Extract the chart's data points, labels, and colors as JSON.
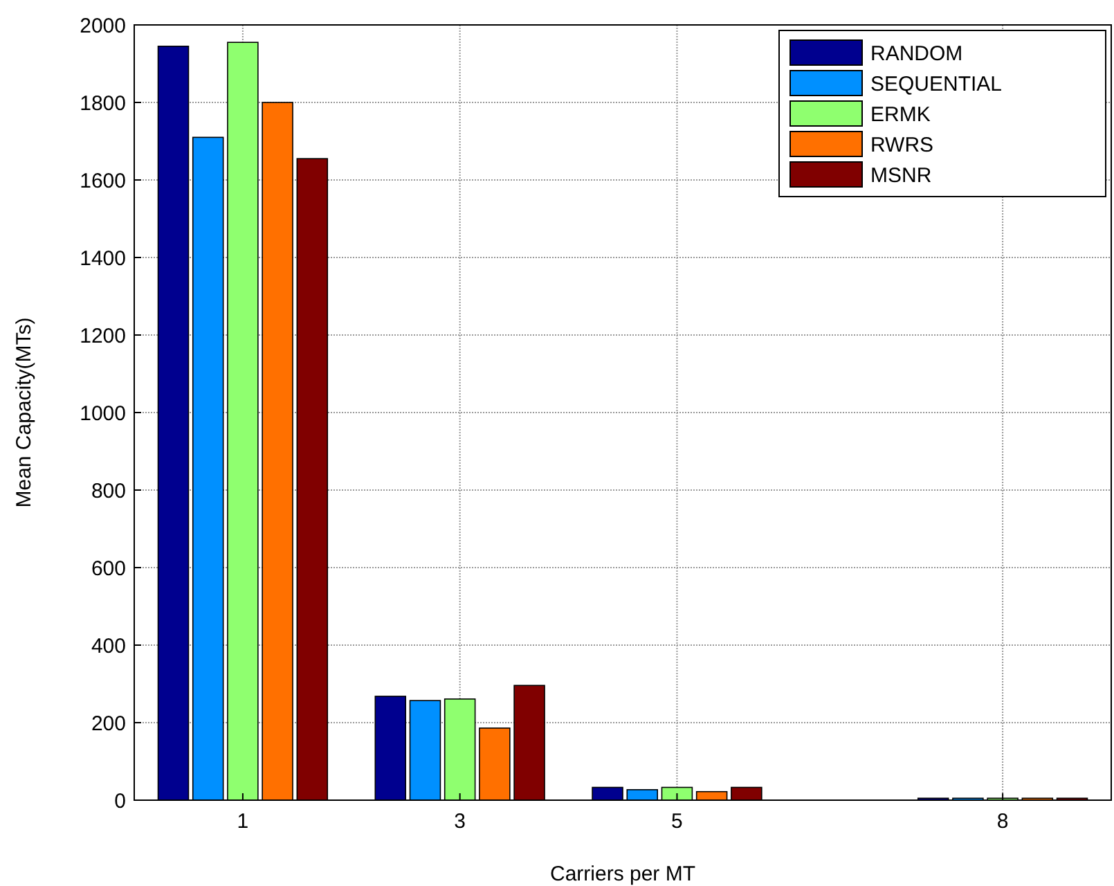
{
  "chart_data": {
    "type": "bar",
    "xlabel": "Carriers per MT",
    "ylabel": "Mean Capacity(MTs)",
    "x": [
      1,
      3,
      5,
      8
    ],
    "xlim": [
      0,
      9
    ],
    "xticks": [
      1,
      3,
      5,
      8
    ],
    "ylim": [
      0,
      2000
    ],
    "yticks": [
      0,
      200,
      400,
      600,
      800,
      1000,
      1200,
      1400,
      1600,
      1800,
      2000
    ],
    "grid": true,
    "legend": "top right",
    "series": [
      {
        "name": "RANDOM",
        "color": "#00008f",
        "values": [
          1945,
          268,
          33,
          5
        ]
      },
      {
        "name": "SEQUENTIAL",
        "color": "#0090ff",
        "values": [
          1710,
          257,
          27,
          5
        ]
      },
      {
        "name": "ERMK",
        "color": "#8fff6f",
        "values": [
          1955,
          261,
          33,
          5
        ]
      },
      {
        "name": "RWRS",
        "color": "#ff7000",
        "values": [
          1800,
          186,
          22,
          5
        ]
      },
      {
        "name": "MSNR",
        "color": "#800000",
        "values": [
          1655,
          296,
          33,
          5
        ]
      }
    ]
  }
}
